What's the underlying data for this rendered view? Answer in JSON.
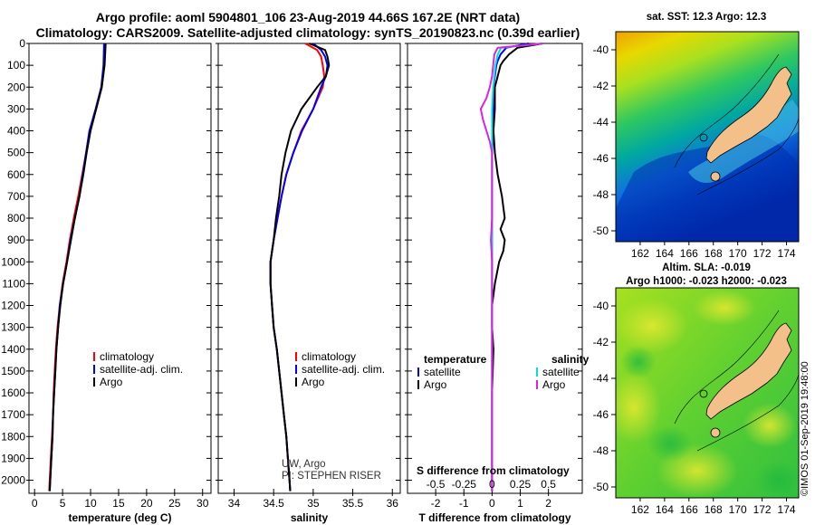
{
  "header": {
    "title_line1": "Argo profile: aoml 5904801_106 23-Aug-2019 44.66S 167.2E (NRT data)",
    "title_line2": "Climatology: CARS2009. Satellite-adjusted climatology: synTS_20190823.nc (0.39d earlier)"
  },
  "maps": {
    "sst_title": "sat. SST: 12.3 Argo: 12.3",
    "sla_title1": "Altim. SLA: -0.019",
    "sla_title2": "Argo h1000: -0.023 h2000: -0.023",
    "lat_ticks": [
      "-40",
      "-42",
      "-44",
      "-46",
      "-48",
      "-50"
    ],
    "lon_ticks": [
      "162",
      "164",
      "166",
      "168",
      "170",
      "172",
      "174"
    ],
    "lon_range": [
      160,
      175
    ],
    "lat_range": [
      -50.6,
      -39
    ],
    "land_color": "#f4c08a",
    "float_position": {
      "lon": 167.2,
      "lat": -44.66
    },
    "credit": "©IMOS 01-Sep-2019 19:48:00"
  },
  "colors": {
    "climatology": "#ff0000",
    "satellite": "#0000ff",
    "argo": "#000000",
    "sat_salinity": "#00e0e0",
    "argo_salinity": "#e020e0"
  },
  "chart_data": [
    {
      "type": "line",
      "xlabel": "temperature (deg C)",
      "xlim": [
        -1,
        31.5
      ],
      "ylim": [
        2060,
        0
      ],
      "xticks": [
        0,
        5,
        10,
        15,
        20,
        25,
        30
      ],
      "yticks": [
        0,
        100,
        200,
        300,
        400,
        500,
        600,
        700,
        800,
        900,
        1000,
        1100,
        1200,
        1300,
        1400,
        1500,
        1600,
        1700,
        1800,
        1900,
        2000
      ],
      "legend": [
        "climatology",
        "satellite-adj. clim.",
        "Argo"
      ],
      "legend_position": "lower-right",
      "series": [
        {
          "name": "climatology",
          "depth": [
            0,
            100,
            200,
            300,
            400,
            500,
            600,
            700,
            800,
            900,
            1000,
            1100,
            1200,
            1300,
            1400,
            1500,
            1600,
            1700,
            1800,
            1900,
            2000,
            2050
          ],
          "values": [
            12.6,
            12.4,
            12.0,
            11.0,
            9.8,
            9.2,
            8.5,
            7.8,
            7.0,
            6.3,
            5.7,
            5.0,
            4.5,
            4.1,
            3.8,
            3.6,
            3.4,
            3.3,
            3.1,
            2.9,
            2.7,
            2.6
          ]
        },
        {
          "name": "satellite-adj. clim.",
          "depth": [
            0,
            100,
            200,
            300,
            400,
            500,
            600,
            700,
            800,
            900,
            1000,
            1100,
            1200,
            1300,
            1400,
            1500,
            1600,
            1700,
            1800,
            1900,
            2000,
            2050
          ],
          "values": [
            12.4,
            12.3,
            11.9,
            10.9,
            9.8,
            9.2,
            8.6,
            8.0,
            7.2,
            6.4,
            5.8,
            5.1,
            4.5,
            4.2,
            3.9,
            3.7,
            3.5,
            3.3,
            3.2,
            3.0,
            2.8,
            2.7
          ]
        },
        {
          "name": "Argo",
          "depth": [
            0,
            100,
            200,
            300,
            400,
            500,
            600,
            700,
            800,
            900,
            1000,
            1100,
            1200,
            1300,
            1400,
            1500,
            1600,
            1700,
            1800,
            1900,
            2000,
            2050
          ],
          "values": [
            12.7,
            12.5,
            12.0,
            11.0,
            10.0,
            9.3,
            8.7,
            8.0,
            7.2,
            6.5,
            5.8,
            5.1,
            4.6,
            4.2,
            3.9,
            3.7,
            3.5,
            3.3,
            3.2,
            3.0,
            2.8,
            2.7
          ]
        }
      ]
    },
    {
      "type": "line",
      "xlabel": "salinity",
      "xlim": [
        33.8,
        36.1
      ],
      "ylim": [
        2060,
        0
      ],
      "xticks": [
        34,
        34.5,
        35,
        35.5,
        36
      ],
      "xtick_labels": [
        "34",
        "34.5",
        "35",
        "35.5",
        "36"
      ],
      "legend": [
        "climatology",
        "satellite-adj. clim.",
        "Argo"
      ],
      "legend_position": "lower-right",
      "annotation": [
        "UW, Argo",
        "PI: STEPHEN RISER"
      ],
      "series": [
        {
          "name": "climatology",
          "depth": [
            0,
            30,
            60,
            100,
            150,
            200,
            300,
            400,
            500,
            600,
            700,
            800,
            900,
            1000,
            1100,
            1200,
            1300,
            1400,
            1500,
            1600,
            1700,
            1800,
            1900,
            2000,
            2050
          ],
          "values": [
            34.9,
            35.05,
            35.1,
            35.12,
            35.14,
            35.12,
            35.0,
            34.85,
            34.75,
            34.66,
            34.6,
            34.55,
            34.5,
            34.46,
            34.46,
            34.48,
            34.5,
            34.54,
            34.57,
            34.6,
            34.63,
            34.66,
            34.68,
            34.7,
            34.71
          ]
        },
        {
          "name": "satellite-adj. clim.",
          "depth": [
            0,
            30,
            60,
            100,
            150,
            200,
            300,
            400,
            500,
            600,
            700,
            800,
            900,
            1000,
            1100,
            1200,
            1300,
            1400,
            1500,
            1600,
            1700,
            1800,
            1900,
            2000,
            2050
          ],
          "values": [
            35.0,
            35.1,
            35.15,
            35.18,
            35.16,
            35.1,
            35.0,
            34.86,
            34.75,
            34.66,
            34.6,
            34.55,
            34.5,
            34.46,
            34.46,
            34.48,
            34.5,
            34.54,
            34.57,
            34.6,
            34.63,
            34.66,
            34.68,
            34.7,
            34.71
          ]
        },
        {
          "name": "Argo",
          "depth": [
            0,
            30,
            60,
            100,
            150,
            200,
            300,
            400,
            500,
            600,
            700,
            800,
            900,
            1000,
            1100,
            1200,
            1300,
            1400,
            1500,
            1600,
            1700,
            1800,
            1900,
            2000,
            2050
          ],
          "values": [
            34.95,
            35.15,
            35.18,
            35.2,
            35.16,
            35.05,
            34.85,
            34.72,
            34.65,
            34.6,
            34.57,
            34.53,
            34.5,
            34.46,
            34.46,
            34.48,
            34.5,
            34.54,
            34.57,
            34.6,
            34.63,
            34.66,
            34.68,
            34.7,
            34.71
          ]
        }
      ]
    },
    {
      "type": "line",
      "xlabel": "T difference from climatology",
      "xlabel_top": "S difference from climatology",
      "xlim": [
        -3,
        3.2
      ],
      "ylim": [
        2060,
        0
      ],
      "xticks": [
        -2,
        -1,
        0,
        1,
        2
      ],
      "xticks_top": [
        -0.5,
        -0.25,
        0,
        0.25,
        0.5
      ],
      "xtick_top_labels": [
        "-0.5",
        "-0.25",
        "0",
        "0.25",
        "0.5"
      ],
      "legend_left_title": "temperature",
      "legend_left": [
        "satellite",
        "Argo"
      ],
      "legend_right_title": "salinity",
      "legend_right": [
        "satellite",
        "Argo"
      ],
      "legend_position": "lower",
      "series": [
        {
          "name": "temperature satellite",
          "depth": [
            0,
            20,
            50,
            80,
            100,
            150,
            200,
            300,
            400,
            500,
            600,
            800,
            1000,
            1200,
            1500,
            1800,
            2050
          ],
          "values": [
            1.3,
            0.5,
            0.3,
            0.2,
            0.15,
            0.1,
            0.05,
            0.05,
            0.05,
            0.0,
            0.0,
            0.0,
            0.0,
            0.0,
            0.0,
            0.0,
            0.0
          ]
        },
        {
          "name": "temperature Argo",
          "depth": [
            0,
            20,
            50,
            80,
            100,
            150,
            200,
            300,
            400,
            500,
            600,
            700,
            800,
            850,
            900,
            950,
            1000,
            1100,
            1200,
            1300,
            1400,
            1600,
            1800,
            2050
          ],
          "values": [
            1.8,
            0.9,
            0.6,
            0.4,
            0.3,
            0.2,
            0.1,
            0.1,
            0.05,
            0.1,
            0.2,
            0.35,
            0.45,
            0.3,
            0.45,
            0.4,
            0.25,
            0.1,
            0.0,
            0.0,
            0.05,
            0.0,
            0.0,
            0.0
          ]
        },
        {
          "name": "salinity satellite",
          "depth": [
            0,
            20,
            50,
            100,
            150,
            200,
            300,
            400,
            500,
            600,
            800,
            1000,
            1200,
            1500,
            1800,
            2050
          ],
          "values": [
            0.45,
            0.08,
            0.05,
            0.03,
            0.02,
            0.01,
            0.0,
            0.0,
            0.0,
            0.0,
            0.0,
            0.0,
            0.0,
            0.0,
            0.0,
            0.0
          ]
        },
        {
          "name": "salinity Argo",
          "depth": [
            0,
            20,
            50,
            100,
            150,
            200,
            250,
            300,
            350,
            400,
            450,
            500,
            550,
            600,
            700,
            800,
            900,
            1000,
            1200,
            1500,
            1800,
            2050
          ],
          "values": [
            0.45,
            0.05,
            0.02,
            0.01,
            0.0,
            -0.02,
            -0.05,
            -0.1,
            -0.08,
            -0.05,
            -0.02,
            0.0,
            0.0,
            0.0,
            0.0,
            0.0,
            -0.01,
            0.0,
            0.0,
            0.0,
            0.0,
            0.0
          ]
        }
      ]
    }
  ]
}
